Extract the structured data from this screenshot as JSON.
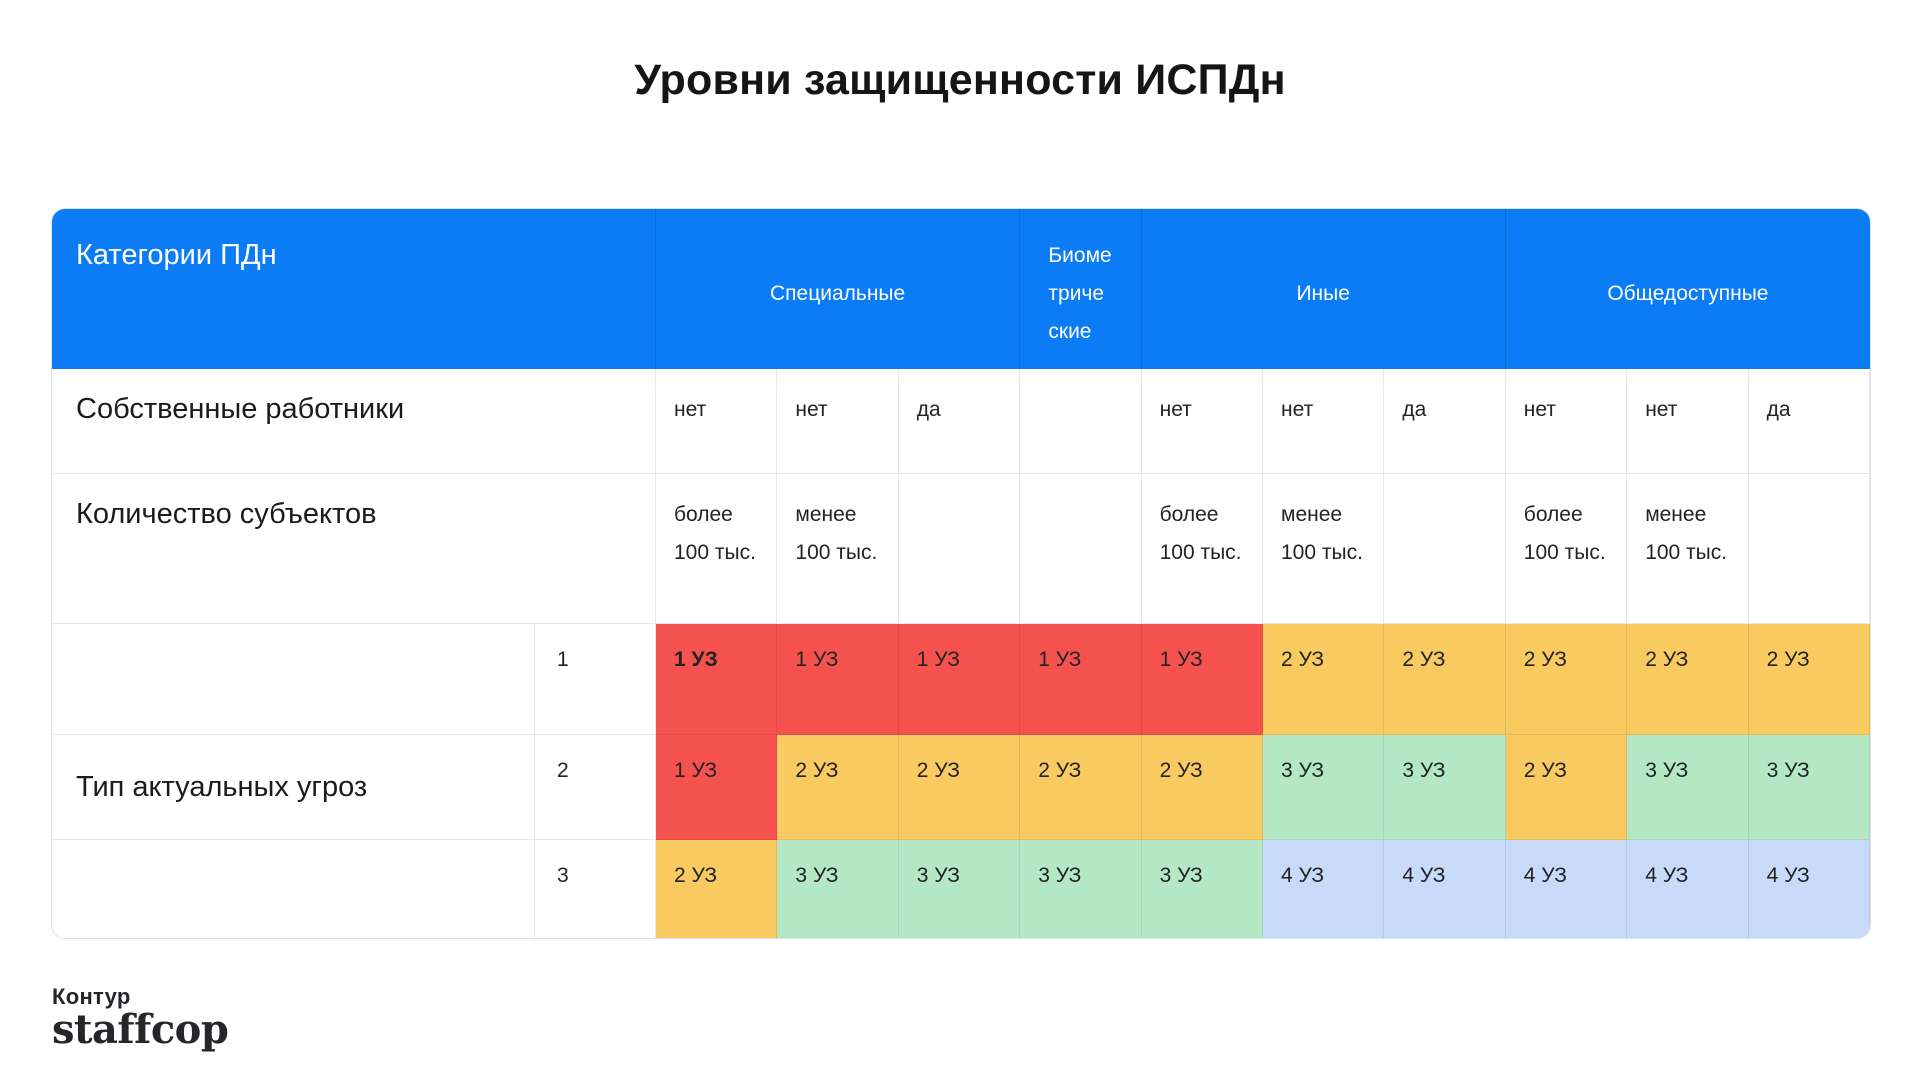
{
  "title": "Уровни защищенности ИСПДн",
  "colors": {
    "header_blue": "#0b7bf6",
    "level1_red": "#f5514f",
    "level2_yellow": "#f8ca60",
    "level3_green": "#b4e8c5",
    "level4_blue": "#c7daf8"
  },
  "table": {
    "corner_label": "Категории ПДн",
    "groups": [
      {
        "label": "Специальные"
      },
      {
        "label": "Биометрические"
      },
      {
        "label": "Иные"
      },
      {
        "label": "Общедоступные"
      }
    ],
    "own_employees": {
      "label": "Собственные работники",
      "cells": [
        "нет",
        "нет",
        "да",
        "",
        "нет",
        "нет",
        "да",
        "нет",
        "нет",
        "да"
      ]
    },
    "subjects_count": {
      "label": "Количество субъектов",
      "cells": [
        "более 100 тыс.",
        "менее 100 тыс.",
        "",
        "",
        "более 100 тыс.",
        "менее 100 тыс.",
        "",
        "более 100 тыс.",
        "менее 100 тыс.",
        ""
      ]
    },
    "threat_type": {
      "label": "Тип актуальных угроз",
      "levels": [
        {
          "num": "1",
          "cells": [
            {
              "text": "1 УЗ",
              "color": "#f5514f"
            },
            {
              "text": "1 УЗ",
              "color": "#f5514f"
            },
            {
              "text": "1 УЗ",
              "color": "#f5514f"
            },
            {
              "text": "1 УЗ",
              "color": "#f5514f"
            },
            {
              "text": "1 УЗ",
              "color": "#f5514f"
            },
            {
              "text": "2 УЗ",
              "color": "#f8ca60"
            },
            {
              "text": "2 УЗ",
              "color": "#f8ca60"
            },
            {
              "text": "2 УЗ",
              "color": "#f8ca60"
            },
            {
              "text": "2 УЗ",
              "color": "#f8ca60"
            },
            {
              "text": "2 УЗ",
              "color": "#f8ca60"
            }
          ]
        },
        {
          "num": "2",
          "cells": [
            {
              "text": "1 УЗ",
              "color": "#f5514f"
            },
            {
              "text": "2 УЗ",
              "color": "#f8ca60"
            },
            {
              "text": "2 УЗ",
              "color": "#f8ca60"
            },
            {
              "text": "2 УЗ",
              "color": "#f8ca60"
            },
            {
              "text": "2 УЗ",
              "color": "#f8ca60"
            },
            {
              "text": "3 УЗ",
              "color": "#b4e8c5"
            },
            {
              "text": "3 УЗ",
              "color": "#b4e8c5"
            },
            {
              "text": "2 УЗ",
              "color": "#f8ca60"
            },
            {
              "text": "3 УЗ",
              "color": "#b4e8c5"
            },
            {
              "text": "3 УЗ",
              "color": "#b4e8c5"
            }
          ]
        },
        {
          "num": "3",
          "cells": [
            {
              "text": "2 УЗ",
              "color": "#f8ca60"
            },
            {
              "text": "3 УЗ",
              "color": "#b4e8c5"
            },
            {
              "text": "3 УЗ",
              "color": "#b4e8c5"
            },
            {
              "text": "3 УЗ",
              "color": "#b4e8c5"
            },
            {
              "text": "3 УЗ",
              "color": "#b4e8c5"
            },
            {
              "text": "4 УЗ",
              "color": "#c7daf8"
            },
            {
              "text": "4 УЗ",
              "color": "#c7daf8"
            },
            {
              "text": "4 УЗ",
              "color": "#c7daf8"
            },
            {
              "text": "4 УЗ",
              "color": "#c7daf8"
            },
            {
              "text": "4 УЗ",
              "color": "#c7daf8"
            }
          ]
        }
      ]
    }
  },
  "logo": {
    "top": "Контур",
    "bottom": "staffcop"
  }
}
